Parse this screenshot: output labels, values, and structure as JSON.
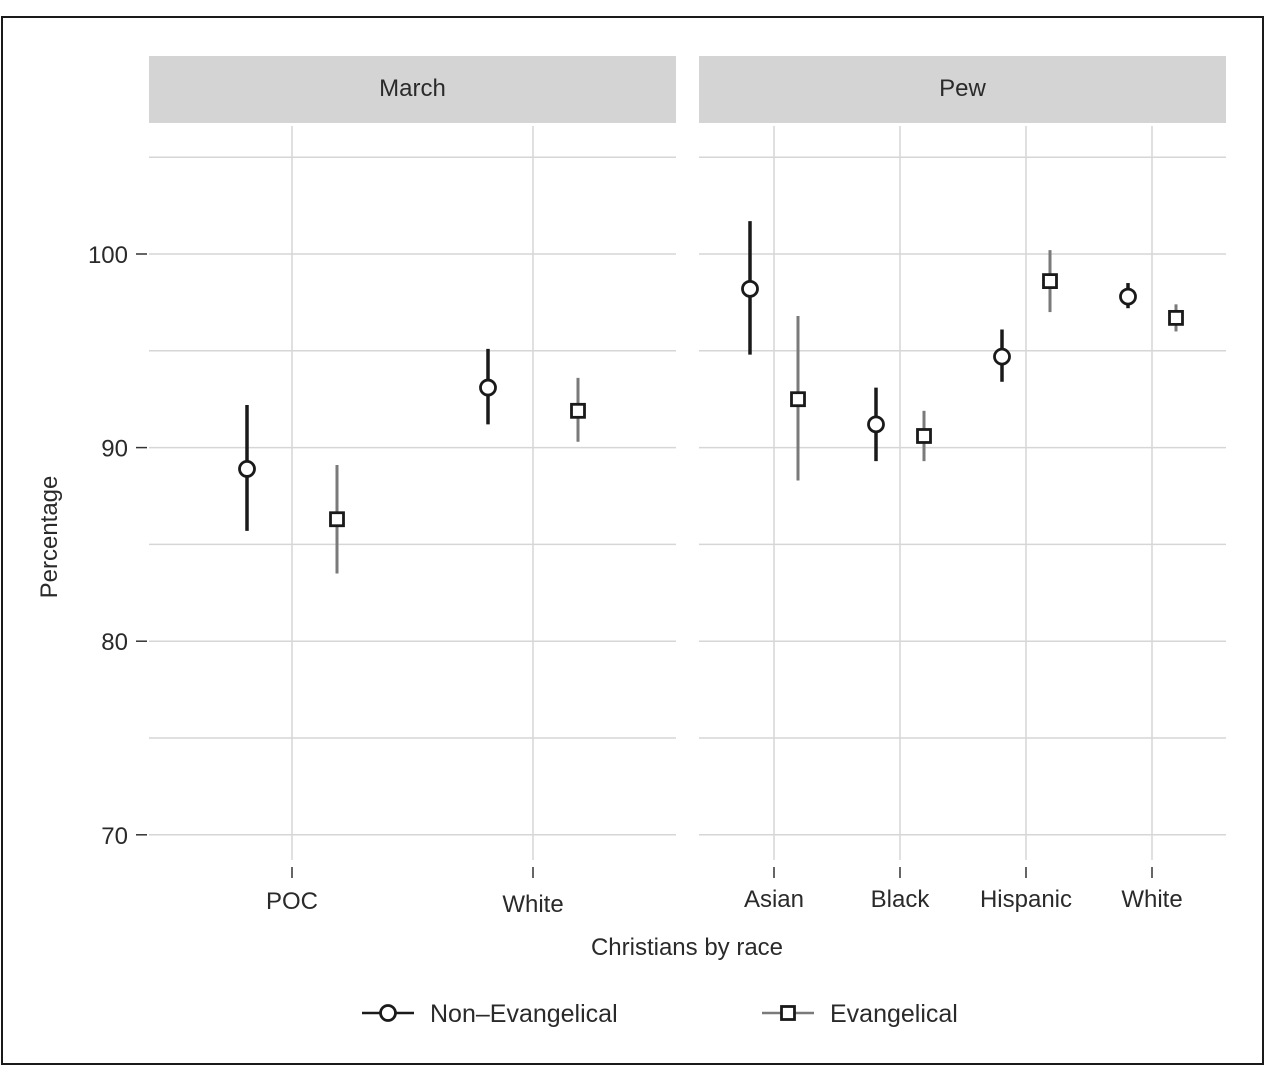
{
  "chart_data": {
    "type": "scatter",
    "xlabel": "Christians by race",
    "ylabel": "Percentage",
    "ylim": [
      70,
      105
    ],
    "y_ticks": [
      70,
      80,
      90,
      100
    ],
    "grid": true,
    "legend_position": "bottom",
    "series_styles": {
      "Non–Evangelical": {
        "marker": "circle",
        "color": "#1a1a1a"
      },
      "Evangelical": {
        "marker": "square",
        "color": "#7a7a7a"
      }
    },
    "panels": [
      {
        "name": "March",
        "categories": [
          "POC",
          "White"
        ],
        "series": [
          {
            "name": "Non–Evangelical",
            "values": [
              88.9,
              93.1
            ],
            "lower": [
              85.7,
              91.2
            ],
            "upper": [
              92.2,
              95.1
            ]
          },
          {
            "name": "Evangelical",
            "values": [
              86.3,
              91.9
            ],
            "lower": [
              83.5,
              90.3
            ],
            "upper": [
              89.1,
              93.6
            ]
          }
        ]
      },
      {
        "name": "Pew",
        "categories": [
          "Asian",
          "Black",
          "Hispanic",
          "White"
        ],
        "series": [
          {
            "name": "Non–Evangelical",
            "values": [
              98.2,
              91.2,
              94.7,
              97.8
            ],
            "lower": [
              94.8,
              89.3,
              93.4,
              97.2
            ],
            "upper": [
              101.7,
              93.1,
              96.1,
              98.5
            ]
          },
          {
            "name": "Evangelical",
            "values": [
              92.5,
              90.6,
              98.6,
              96.7
            ],
            "lower": [
              88.3,
              89.3,
              97.0,
              96.0
            ],
            "upper": [
              96.8,
              91.9,
              100.2,
              97.4
            ]
          }
        ]
      }
    ],
    "legend": [
      "Non–Evangelical",
      "Evangelical"
    ]
  }
}
